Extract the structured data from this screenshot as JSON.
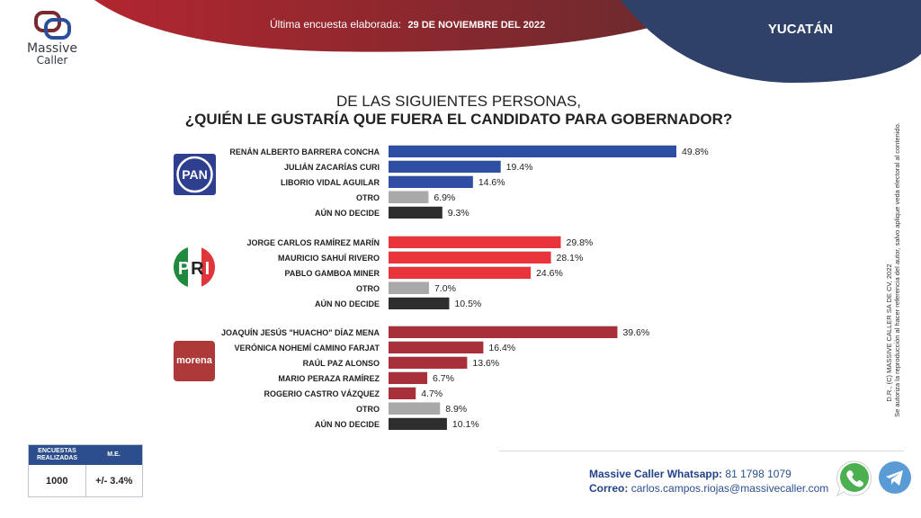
{
  "brand": {
    "name_line1": "Massive",
    "name_line2": "Caller"
  },
  "header": {
    "subtitle_label": "Última encuesta elaborada:",
    "subtitle_date": "29 DE NOVIEMBRE DEL 2022",
    "state": "YUCATÁN",
    "colors": {
      "red": "#9e2a33",
      "navy": "#2f4168"
    }
  },
  "title": {
    "line1": "DE LAS SIGUIENTES PERSONAS,",
    "line2": "¿QUIÉN LE GUSTARÍA QUE FUERA EL CANDIDATO PARA GOBERNADOR?"
  },
  "chart_data": {
    "type": "bar",
    "orientation": "horizontal",
    "title": "¿QUIÉN LE GUSTARÍA QUE FUERA EL CANDIDATO PARA GOBERNADOR?",
    "unit": "%",
    "xlim": [
      0,
      50
    ],
    "groups": [
      {
        "party": "PAN",
        "logo": "pan-logo",
        "color": "#2e4ea3",
        "categories": [
          "RENÁN ALBERTO BARRERA CONCHA",
          "JULIÁN ZACARÍAS CURI",
          "LIBORIO  VIDAL AGUILAR",
          "OTRO",
          "AÚN NO DECIDE"
        ],
        "values": [
          49.8,
          19.4,
          14.6,
          6.9,
          9.3
        ],
        "labels": [
          "49.8%",
          "19.4%",
          "14.6%",
          "6.9%",
          "9.3%"
        ]
      },
      {
        "party": "PRI",
        "logo": "pri-logo",
        "color": "#e8343a",
        "categories": [
          "JORGE CARLOS RAMÍREZ MARÍN",
          "MAURICIO SAHUÍ RIVERO",
          "PABLO GAMBOA MINER",
          "OTRO",
          "AÚN NO DECIDE"
        ],
        "values": [
          29.8,
          28.1,
          24.6,
          7.0,
          10.5
        ],
        "labels": [
          "29.8%",
          "28.1%",
          "24.6%",
          "7.0%",
          "10.5%"
        ]
      },
      {
        "party": "MORENA",
        "logo": "morena-logo",
        "logo_text": "morena",
        "color": "#a8303a",
        "categories": [
          "JOAQUÍN JESÚS \"HUACHO\" DÍAZ MENA",
          "VERÓNICA NOHEMÍ CAMINO FARJAT",
          "RAÚL PAZ ALONSO",
          "MARIO PERAZA RAMÍREZ",
          "ROGERIO CASTRO VÁZQUEZ",
          "OTRO",
          "AÚN NO DECIDE"
        ],
        "values": [
          39.6,
          16.4,
          13.6,
          6.7,
          4.7,
          8.9,
          10.1
        ],
        "labels": [
          "39.6%",
          "16.4%",
          "13.6%",
          "6.7%",
          "4.7%",
          "8.9%",
          "10.1%"
        ]
      }
    ],
    "special_colors": {
      "OTRO": "#a9a9a9",
      "AÚN NO DECIDE": "#2e2e2e"
    }
  },
  "stats": {
    "header_surveys": "ENCUESTAS REALIZADAS",
    "header_me": "M.E.",
    "surveys": "1000",
    "me": "+/- 3.4%"
  },
  "contact": {
    "whatsapp_label": "Massive Caller Whatsapp:",
    "whatsapp_number": "81 1798 1079",
    "email_label": "Correo:",
    "email": "carlos.campos.riojas@massivecaller.com"
  },
  "copyright": {
    "line1": "D.R., (C) MASSIVE CALLER SA DE CV,  2022",
    "line2": "Se autoriza la reproducción al hacer referencia del autor, salvo aplique veda electoral al contenido."
  }
}
